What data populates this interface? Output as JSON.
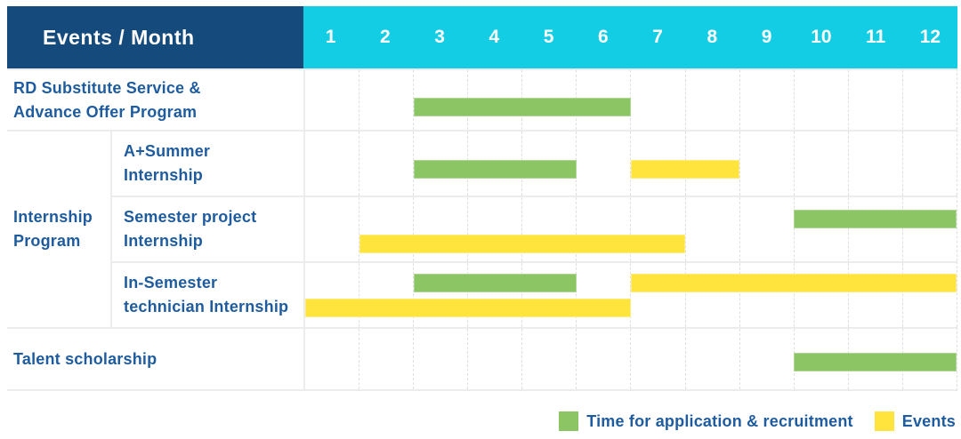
{
  "header": {
    "label": "Events / Month"
  },
  "months": [
    "1",
    "2",
    "3",
    "4",
    "5",
    "6",
    "7",
    "8",
    "9",
    "10",
    "11",
    "12"
  ],
  "colors": {
    "header_bg": "#154a7d",
    "months_bg": "#13cde5",
    "header_text": "#ffffff",
    "application": "#8bc564",
    "event": "#ffe43e",
    "label_text": "#1e5c9f",
    "grid_line": "#ececec",
    "dash_line": "#dfdfdf"
  },
  "group_label": "Internship\nProgram",
  "chart_data": {
    "type": "gantt",
    "x_unit": "month",
    "x_range": [
      1,
      12
    ],
    "grid": "dashed-vertical",
    "rows": [
      {
        "label": "RD Substitute Service &\nAdvance Offer Program",
        "group": "",
        "bars": [
          {
            "type": "application",
            "start_month": 3,
            "end_month": 6,
            "line": 1
          }
        ]
      },
      {
        "label": "A+Summer\nInternship",
        "group": "Internship Program",
        "bars": [
          {
            "type": "application",
            "start_month": 3,
            "end_month": 5,
            "line": 1
          },
          {
            "type": "event",
            "start_month": 7,
            "end_month": 8,
            "line": 1
          }
        ]
      },
      {
        "label": "Semester project\nInternship",
        "group": "Internship Program",
        "bars": [
          {
            "type": "application",
            "start_month": 10,
            "end_month": 12,
            "line": 1
          },
          {
            "type": "event",
            "start_month": 2,
            "end_month": 7,
            "line": 2
          }
        ]
      },
      {
        "label": "In-Semester\ntechnician Internship",
        "group": "Internship Program",
        "bars": [
          {
            "type": "application",
            "start_month": 3,
            "end_month": 5,
            "line": 1
          },
          {
            "type": "event",
            "start_month": 7,
            "end_month": 12,
            "line": 1
          },
          {
            "type": "event",
            "start_month": 1,
            "end_month": 6,
            "line": 2
          }
        ]
      },
      {
        "label": "Talent scholarship",
        "group": "",
        "bars": [
          {
            "type": "application",
            "start_month": 10,
            "end_month": 12,
            "line": 1
          }
        ]
      }
    ]
  },
  "legend": {
    "items": [
      {
        "type": "application",
        "label": "Time for application & recruitment"
      },
      {
        "type": "event",
        "label": "Events"
      }
    ]
  }
}
